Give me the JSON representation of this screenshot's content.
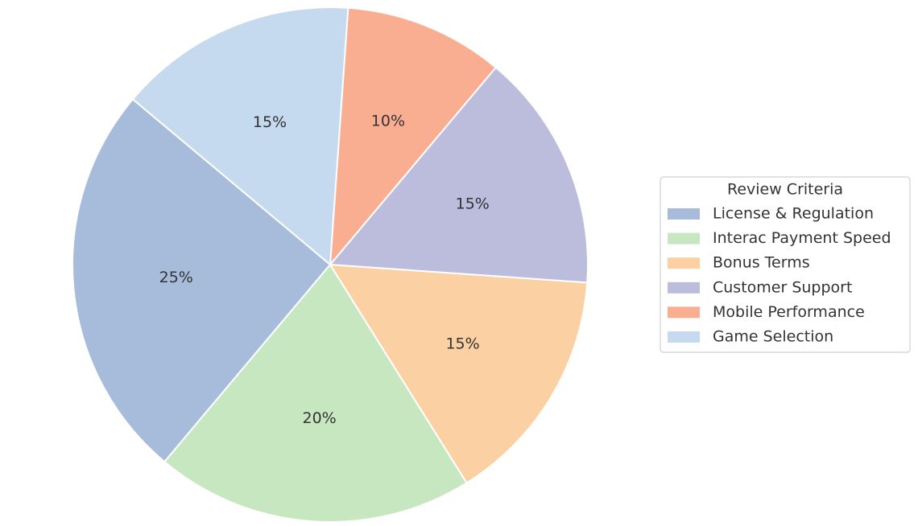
{
  "chart_data": {
    "type": "pie",
    "legend_title": "Review Criteria",
    "legend": "center right",
    "categories": [
      "License & Regulation",
      "Interac Payment Speed",
      "Bonus Terms",
      "Customer Support",
      "Mobile Performance",
      "Game Selection"
    ],
    "values": [
      25,
      20,
      15,
      15,
      10,
      15
    ],
    "value_labels": [
      "25%",
      "20%",
      "15%",
      "15%",
      "10%",
      "15%"
    ],
    "colors": [
      "#a7bcdb",
      "#c7e7c0",
      "#fbd0a2",
      "#bcbcdc",
      "#faae91",
      "#c6daef"
    ]
  }
}
